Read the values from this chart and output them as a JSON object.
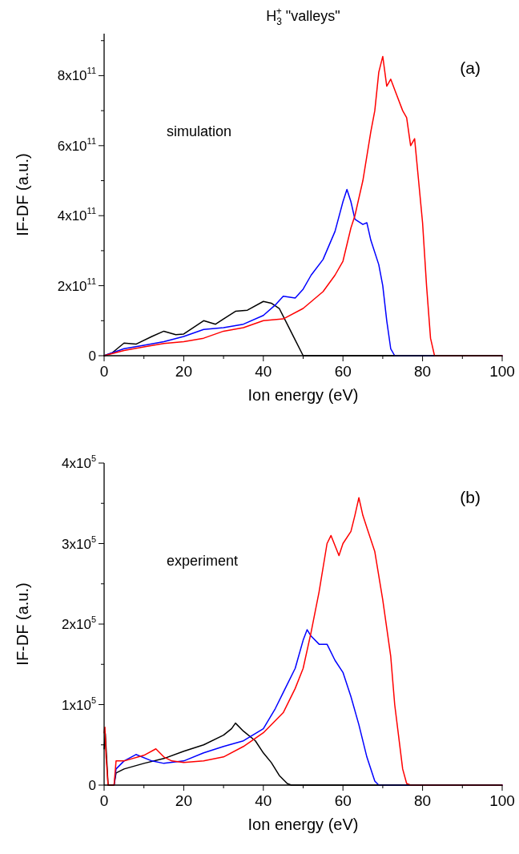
{
  "chart_data": [
    {
      "type": "line",
      "title": "H$_{3}$$^{+}$ \"valleys\"",
      "xlabel": "Ion energy (eV)",
      "ylabel": "IF-DF (a.u.)",
      "annotations": [
        "(a)",
        "simulation"
      ],
      "xlim": [
        0,
        100
      ],
      "ylim": [
        0,
        920000000000
      ],
      "xticks": [
        0,
        {
          "value": 10,
          "label": null
        },
        20,
        {
          "value": 30,
          "label": null
        },
        40,
        {
          "value": 50,
          "label": null
        },
        60,
        {
          "value": 70,
          "label": null
        },
        80,
        {
          "value": 90,
          "label": null
        },
        100
      ],
      "yticks": [
        0,
        {
          "value": 100000000000,
          "label": null
        },
        {
          "value": 200000000000,
          "label": "2x10$^{11}$"
        },
        {
          "value": 300000000000,
          "label": null
        },
        {
          "value": 400000000000,
          "label": "4x10$^{11}$"
        },
        {
          "value": 500000000000,
          "label": null
        },
        {
          "value": 600000000000,
          "label": "6x10$^{11}$"
        },
        {
          "value": 700000000000,
          "label": null
        },
        {
          "value": 800000000000,
          "label": "8x10$^{11}$"
        },
        {
          "value": 900000000000,
          "label": null
        }
      ],
      "grid": false,
      "line_style": "solid",
      "series": [
        {
          "color": "#000000",
          "x": [
            0,
            2,
            5,
            8,
            12,
            15,
            18,
            20,
            25,
            28,
            30,
            33,
            36,
            40,
            42,
            44,
            46,
            48,
            50,
            100
          ],
          "values": [
            0,
            8000000000,
            36000000000,
            33000000000,
            55000000000,
            70000000000,
            60000000000,
            62000000000,
            100000000000,
            90000000000,
            105000000000,
            127000000000,
            130000000000,
            155000000000,
            150000000000,
            135000000000,
            90000000000,
            45000000000,
            0,
            0
          ]
        },
        {
          "color": "#0000ff",
          "x": [
            0,
            5,
            10,
            15,
            20,
            25,
            30,
            35,
            40,
            43,
            45,
            48,
            50,
            52,
            55,
            58,
            60,
            61,
            62,
            63,
            65,
            66,
            67,
            69,
            70,
            71,
            72,
            73,
            100
          ],
          "values": [
            0,
            20000000000,
            30000000000,
            40000000000,
            55000000000,
            75000000000,
            80000000000,
            90000000000,
            115000000000,
            145000000000,
            170000000000,
            165000000000,
            190000000000,
            230000000000,
            275000000000,
            355000000000,
            440000000000,
            475000000000,
            440000000000,
            390000000000,
            375000000000,
            380000000000,
            330000000000,
            260000000000,
            200000000000,
            100000000000,
            20000000000,
            0,
            0
          ]
        },
        {
          "color": "#ff0000",
          "x": [
            0,
            5,
            10,
            15,
            20,
            25,
            30,
            35,
            40,
            45,
            50,
            55,
            58,
            60,
            62,
            63,
            65,
            67,
            68,
            69,
            70,
            71,
            72,
            73,
            75,
            76,
            77,
            78,
            79,
            80,
            81,
            82,
            83,
            100
          ],
          "values": [
            0,
            15000000000,
            25000000000,
            35000000000,
            40000000000,
            50000000000,
            70000000000,
            80000000000,
            100000000000,
            105000000000,
            135000000000,
            183000000000,
            230000000000,
            270000000000,
            365000000000,
            400000000000,
            500000000000,
            640000000000,
            700000000000,
            810000000000,
            855000000000,
            770000000000,
            790000000000,
            760000000000,
            700000000000,
            680000000000,
            600000000000,
            620000000000,
            500000000000,
            380000000000,
            200000000000,
            50000000000,
            0,
            0
          ]
        }
      ]
    },
    {
      "type": "line",
      "xlabel": "Ion energy (eV)",
      "ylabel": "IF-DF (a.u.)",
      "annotations": [
        "(b)",
        "experiment"
      ],
      "xlim": [
        0,
        100
      ],
      "ylim": [
        0,
        400000
      ],
      "xticks": [
        0,
        {
          "value": 10,
          "label": null
        },
        20,
        {
          "value": 30,
          "label": null
        },
        40,
        {
          "value": 50,
          "label": null
        },
        60,
        {
          "value": 70,
          "label": null
        },
        80,
        {
          "value": 90,
          "label": null
        },
        100
      ],
      "yticks": [
        0,
        {
          "value": 50000,
          "label": null
        },
        {
          "value": 100000,
          "label": "1x10$^{5}$"
        },
        {
          "value": 150000,
          "label": null
        },
        {
          "value": 200000,
          "label": "2x10$^{5}$"
        },
        {
          "value": 250000,
          "label": null
        },
        {
          "value": 300000,
          "label": "3x10$^{5}$"
        },
        {
          "value": 350000,
          "label": null
        },
        {
          "value": 400000,
          "label": "4x10$^{5}$"
        }
      ],
      "grid": false,
      "line_style": "solid",
      "series": [
        {
          "color": "#000000",
          "x": [
            0,
            0.3,
            1,
            2.5,
            3,
            5,
            10,
            15,
            20,
            25,
            30,
            32,
            33,
            35,
            38,
            40,
            42,
            44,
            46,
            47,
            100
          ],
          "values": [
            45000,
            64000,
            0,
            0,
            15000,
            20000,
            27000,
            33000,
            42000,
            50000,
            62000,
            70000,
            77000,
            67000,
            55000,
            40000,
            28000,
            12000,
            2000,
            0,
            0
          ]
        },
        {
          "color": "#0000ff",
          "x": [
            2.5,
            3,
            5,
            8,
            12,
            15,
            20,
            25,
            30,
            35,
            40,
            43,
            45,
            48,
            50,
            51,
            52,
            54,
            56,
            58,
            60,
            62,
            64,
            66,
            68,
            69,
            100
          ],
          "values": [
            0,
            20000,
            30000,
            38000,
            30000,
            27000,
            30000,
            40000,
            48000,
            55000,
            70000,
            95000,
            115000,
            145000,
            180000,
            193000,
            185000,
            175000,
            175000,
            155000,
            140000,
            110000,
            75000,
            35000,
            5000,
            0,
            0
          ]
        },
        {
          "color": "#ff0000",
          "x": [
            0,
            0.2,
            0.5,
            1,
            2.5,
            3,
            5,
            10,
            13,
            15,
            17,
            20,
            25,
            30,
            35,
            40,
            45,
            48,
            50,
            52,
            54,
            56,
            57,
            59,
            60,
            62,
            63,
            64,
            65,
            66,
            68,
            70,
            72,
            73,
            74,
            75,
            76,
            77,
            100
          ],
          "values": [
            65000,
            72000,
            35000,
            0,
            0,
            30000,
            30000,
            37000,
            45000,
            35000,
            30000,
            28000,
            30000,
            35000,
            48000,
            65000,
            90000,
            120000,
            145000,
            190000,
            240000,
            300000,
            310000,
            285000,
            300000,
            315000,
            335000,
            357000,
            335000,
            320000,
            290000,
            230000,
            160000,
            100000,
            60000,
            20000,
            2000,
            0,
            0
          ]
        }
      ]
    }
  ]
}
